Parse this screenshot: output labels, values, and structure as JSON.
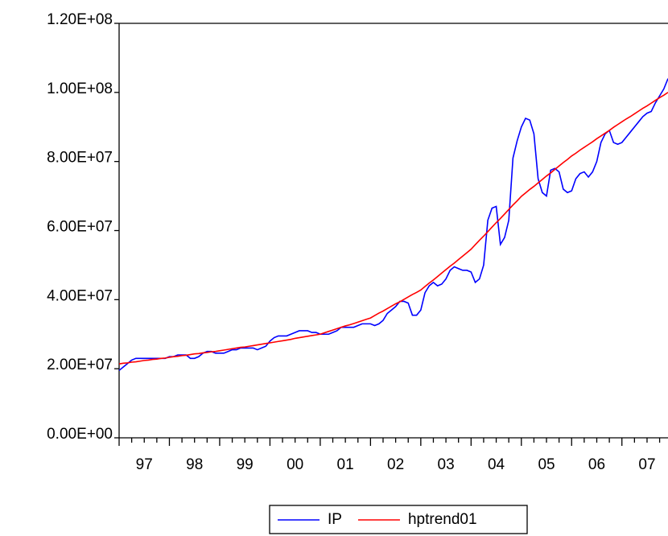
{
  "chart_data": {
    "type": "line",
    "categories": [
      null,
      null,
      null,
      null,
      null,
      null,
      "97",
      null,
      null,
      null,
      null,
      null,
      null,
      null,
      null,
      null,
      null,
      null,
      "98",
      null,
      null,
      null,
      null,
      null,
      null,
      null,
      null,
      null,
      null,
      null,
      "99",
      null,
      null,
      null,
      null,
      null,
      null,
      null,
      null,
      null,
      null,
      null,
      "00",
      null,
      null,
      null,
      null,
      null,
      null,
      null,
      null,
      null,
      null,
      null,
      "01",
      null,
      null,
      null,
      null,
      null,
      null,
      null,
      null,
      null,
      null,
      null,
      "02",
      null,
      null,
      null,
      null,
      null,
      null,
      null,
      null,
      null,
      null,
      null,
      "03",
      null,
      null,
      null,
      null,
      null,
      null,
      null,
      null,
      null,
      null,
      null,
      "04",
      null,
      null,
      null,
      null,
      null,
      null,
      null,
      null,
      null,
      null,
      null,
      "05",
      null,
      null,
      null,
      null,
      null,
      null,
      null,
      null,
      null,
      null,
      null,
      "06",
      null,
      null,
      null,
      null,
      null,
      null,
      null,
      null,
      null,
      null,
      null,
      "07",
      null,
      null,
      null,
      null,
      null
    ],
    "series": [
      {
        "name": "IP",
        "color": "#0000ff",
        "values": [
          19500000,
          20500000,
          21500000,
          22500000,
          23000000,
          23000000,
          23000000,
          23000000,
          23000000,
          23000000,
          23000000,
          23000000,
          23500000,
          23500000,
          24000000,
          24000000,
          24000000,
          23000000,
          23000000,
          23500000,
          24500000,
          25000000,
          25000000,
          24500000,
          24500000,
          24500000,
          25000000,
          25500000,
          25500000,
          26000000,
          26000000,
          26000000,
          26000000,
          25500000,
          26000000,
          26500000,
          28000000,
          29000000,
          29500000,
          29500000,
          29500000,
          30000000,
          30500000,
          31000000,
          31000000,
          31000000,
          30500000,
          30500000,
          30000000,
          30000000,
          30000000,
          30500000,
          31000000,
          32000000,
          32000000,
          32000000,
          32000000,
          32500000,
          33000000,
          33000000,
          33000000,
          32500000,
          33000000,
          34000000,
          36000000,
          37000000,
          38000000,
          39500000,
          39500000,
          39000000,
          35500000,
          35500000,
          37000000,
          42000000,
          44000000,
          45000000,
          44000000,
          44500000,
          46000000,
          48500000,
          49500000,
          49000000,
          48500000,
          48500000,
          48000000,
          45000000,
          46000000,
          50000000,
          63000000,
          66500000,
          67000000,
          56000000,
          58000000,
          63000000,
          81000000,
          86000000,
          90000000,
          92500000,
          92000000,
          88000000,
          75000000,
          71000000,
          70000000,
          77500000,
          78000000,
          77000000,
          72000000,
          71000000,
          71500000,
          75000000,
          76500000,
          77000000,
          75500000,
          77000000,
          80000000,
          85500000,
          88000000,
          89000000,
          85500000,
          85000000,
          85500000,
          87000000,
          88500000,
          90000000,
          91500000,
          93000000,
          94000000,
          94500000,
          97000000,
          99000000,
          101000000,
          104000000
        ]
      },
      {
        "name": "hptrend01",
        "color": "#ff0000",
        "values": [
          21400000,
          21600000,
          21700000,
          21900000,
          22000000,
          22200000,
          22400000,
          22500000,
          22700000,
          22800000,
          23000000,
          23100000,
          23300000,
          23500000,
          23600000,
          23800000,
          23900000,
          24100000,
          24300000,
          24400000,
          24600000,
          24700000,
          24900000,
          25000000,
          25200000,
          25400000,
          25600000,
          25800000,
          26000000,
          26200000,
          26300000,
          26500000,
          26700000,
          26900000,
          27100000,
          27300000,
          27500000,
          27700000,
          27900000,
          28100000,
          28300000,
          28500000,
          28800000,
          29000000,
          29200000,
          29400000,
          29600000,
          29800000,
          30000000,
          30400000,
          30800000,
          31200000,
          31600000,
          32000000,
          32400000,
          32700000,
          33100000,
          33500000,
          33900000,
          34300000,
          34700000,
          35400000,
          36100000,
          36700000,
          37400000,
          38100000,
          38800000,
          39400000,
          40100000,
          40800000,
          41500000,
          42100000,
          42800000,
          43800000,
          44800000,
          45700000,
          46700000,
          47700000,
          48700000,
          49700000,
          50600000,
          51600000,
          52600000,
          53600000,
          54600000,
          55900000,
          57200000,
          58400000,
          59700000,
          61000000,
          62300000,
          63500000,
          64800000,
          66100000,
          67400000,
          68600000,
          69900000,
          70900000,
          71900000,
          72800000,
          73800000,
          74800000,
          75800000,
          76700000,
          77700000,
          78700000,
          79700000,
          80600000,
          81600000,
          82400000,
          83300000,
          84100000,
          84900000,
          85700000,
          86600000,
          87400000,
          88200000,
          89000000,
          89900000,
          90700000,
          91500000,
          92300000,
          93000000,
          93800000,
          94600000,
          95400000,
          96100000,
          96900000,
          97700000,
          98500000,
          99200000,
          100000000
        ]
      }
    ],
    "ylim": [
      0,
      120000000
    ],
    "yticks": [
      {
        "value": 0,
        "label": "0.00E+00"
      },
      {
        "value": 20000000,
        "label": "2.00E+07"
      },
      {
        "value": 40000000,
        "label": "4.00E+07"
      },
      {
        "value": 60000000,
        "label": "6.00E+07"
      },
      {
        "value": 80000000,
        "label": "8.00E+07"
      },
      {
        "value": 100000000,
        "label": "1.00E+08"
      },
      {
        "value": 120000000,
        "label": "1.20E+08"
      }
    ],
    "grid": false,
    "legend": "bottom"
  }
}
